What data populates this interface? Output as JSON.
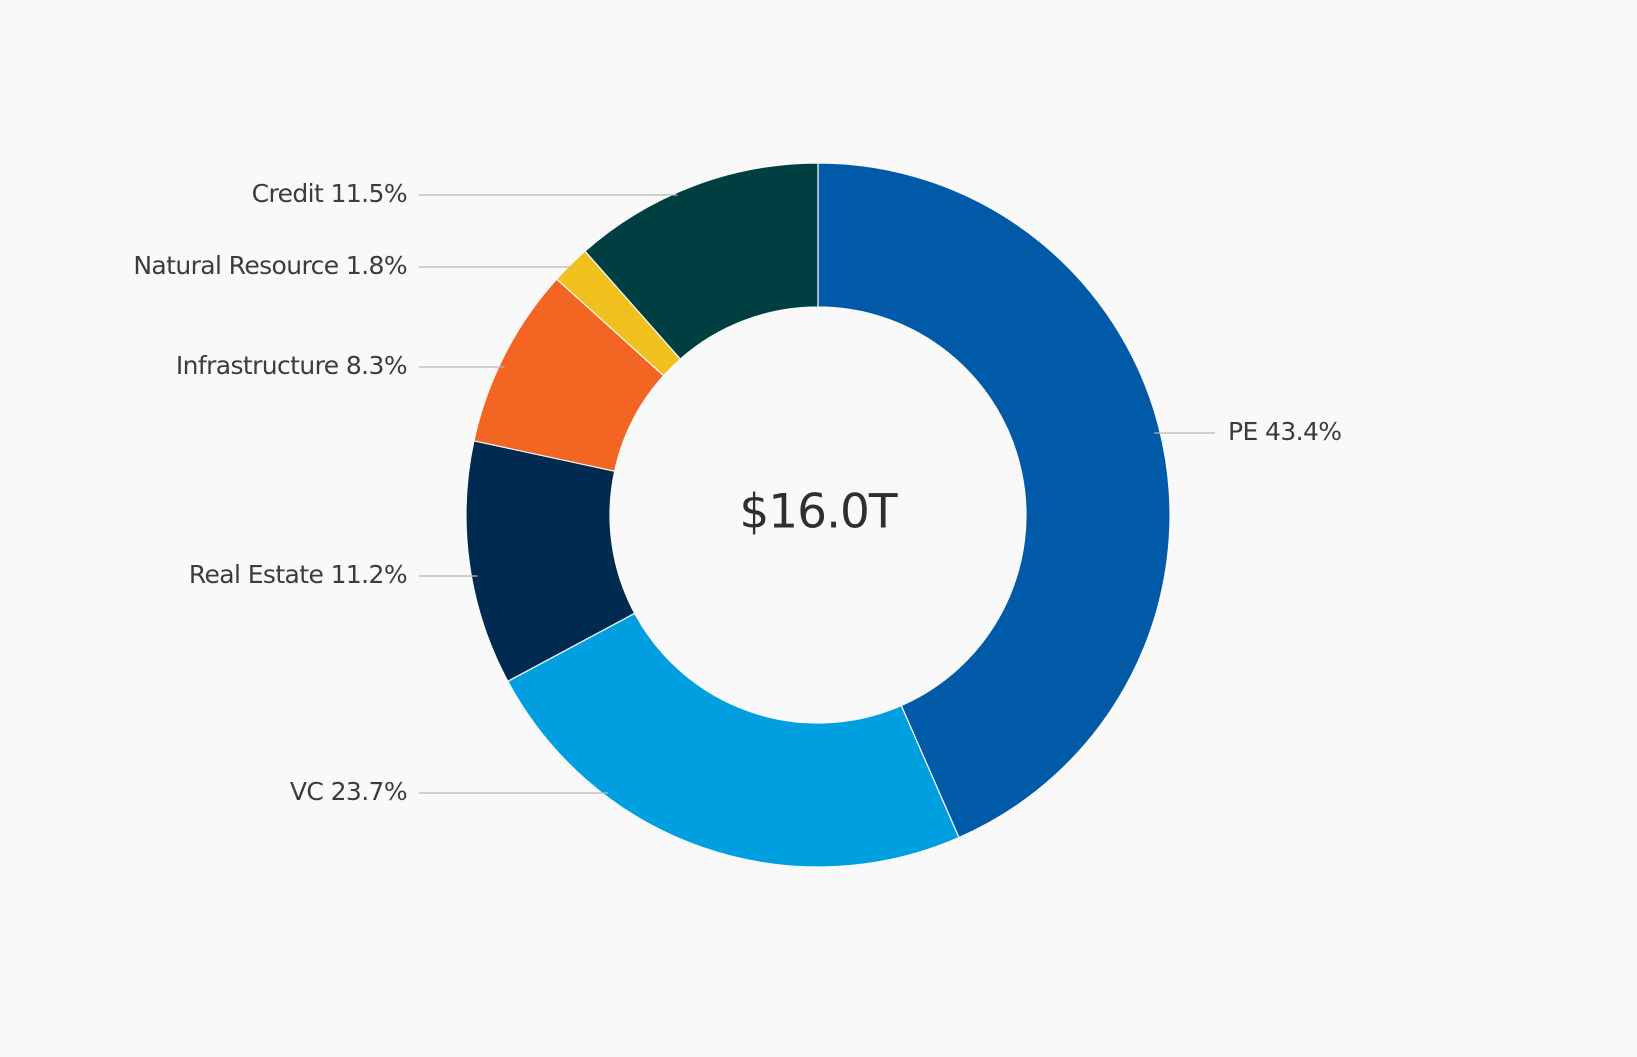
{
  "chart_data": {
    "type": "pie",
    "variant": "donut",
    "center_label": "$16.0T",
    "slices": [
      {
        "name": "PE",
        "value": 43.4,
        "label": "PE 43.4%",
        "color": "#005aa7"
      },
      {
        "name": "VC",
        "value": 23.7,
        "label": "VC 23.7%",
        "color": "#00a0e0"
      },
      {
        "name": "Real Estate",
        "value": 11.2,
        "label": "Real Estate 11.2%",
        "color": "#002a50"
      },
      {
        "name": "Infrastructure",
        "value": 8.3,
        "label": "Infrastructure 8.3%",
        "color": "#f26522"
      },
      {
        "name": "Natural Resource",
        "value": 1.8,
        "label": "Natural Resource 1.8%",
        "color": "#f0c11e"
      },
      {
        "name": "Credit",
        "value": 11.5,
        "label": "Credit 11.5%",
        "color": "#003f41"
      }
    ],
    "start": "top",
    "direction": "clockwise",
    "legend": "none",
    "label_placement": "outside-with-leader-lines"
  }
}
